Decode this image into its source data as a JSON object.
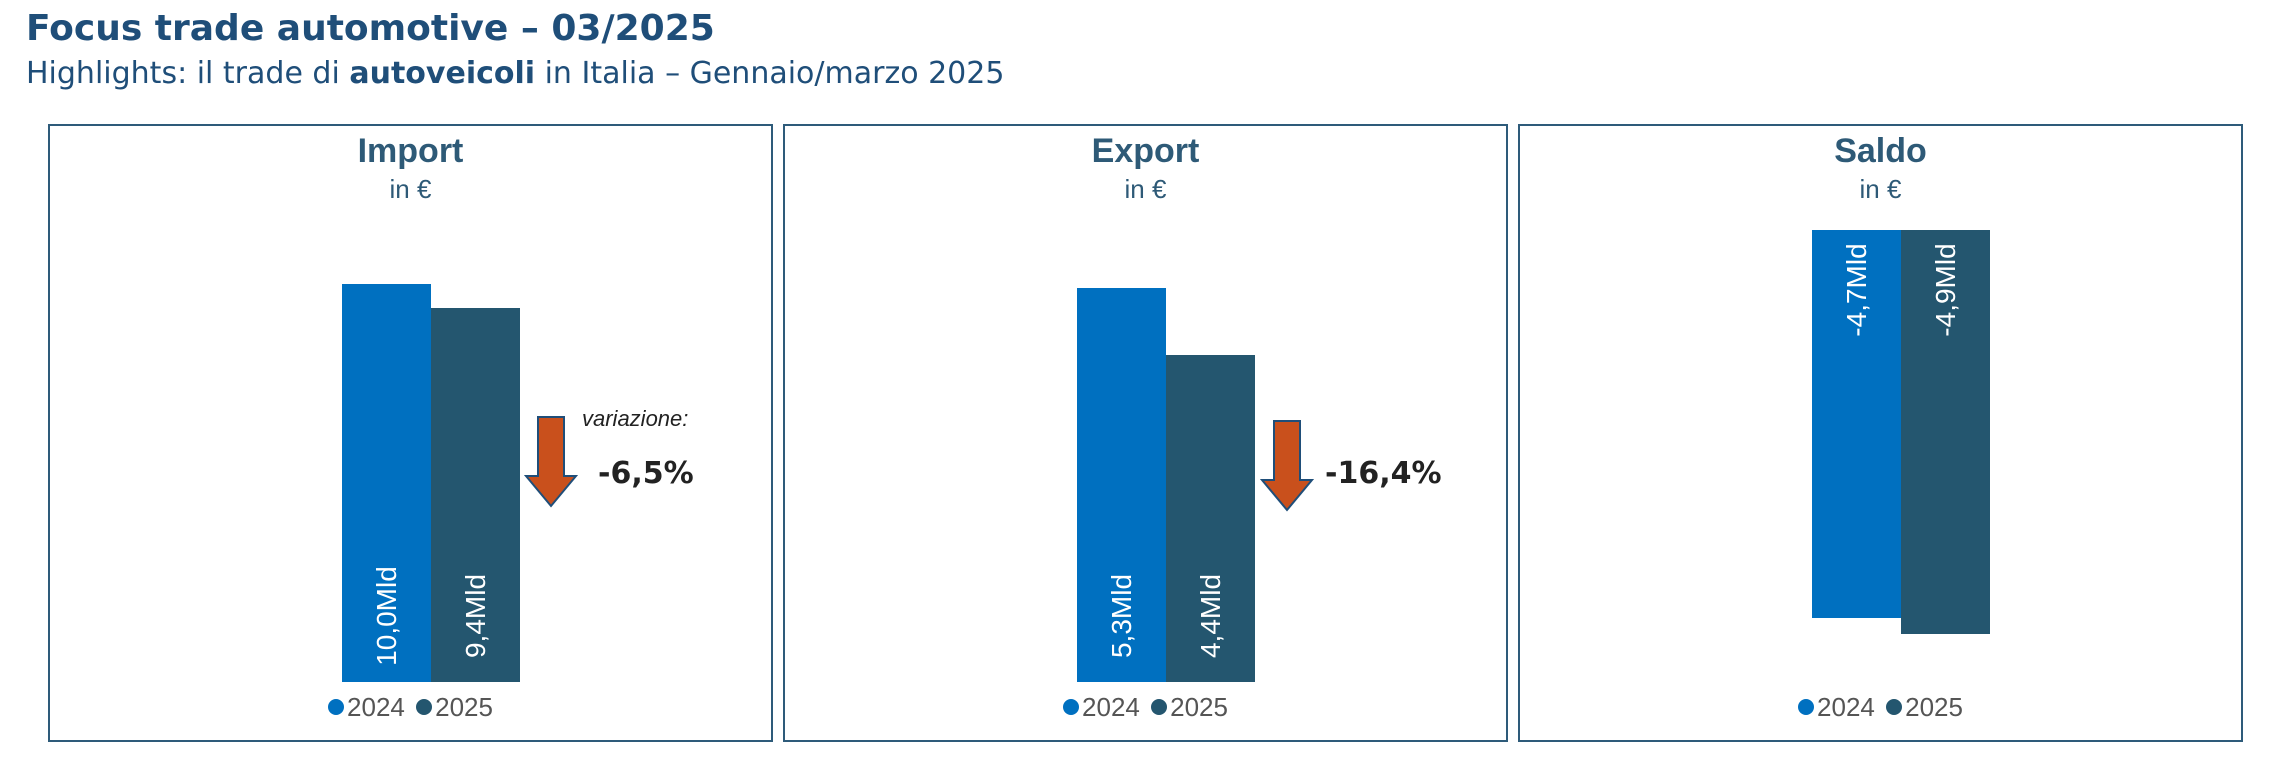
{
  "header": {
    "title": "Focus trade automotive – 03/2025",
    "subtitle_pre": "Highlights: il trade di ",
    "subtitle_bold": "autoveicoli",
    "subtitle_post": " in Italia – Gennaio/marzo 2025"
  },
  "colors": {
    "s2024": "#0070c0",
    "s2025": "#24566f",
    "arrow": "#c9501c",
    "arrow_edge": "#1f4e79",
    "border": "#2e5b7a"
  },
  "chart_data": [
    {
      "type": "bar",
      "title": "Import",
      "subtitle": "in €",
      "categories": [
        "2024",
        "2025"
      ],
      "values": [
        10.0,
        9.4
      ],
      "data_labels": [
        "10,0Mld",
        "9,4Mld"
      ],
      "legend": [
        "2024",
        "2025"
      ],
      "legend_position": "bottom",
      "grid": false,
      "variation_label": "variazione:",
      "variation": "-6,5%"
    },
    {
      "type": "bar",
      "title": "Export",
      "subtitle": "in €",
      "categories": [
        "2024",
        "2025"
      ],
      "values": [
        5.3,
        4.4
      ],
      "data_labels": [
        "5,3Mld",
        "4,4Mld"
      ],
      "legend": [
        "2024",
        "2025"
      ],
      "legend_position": "bottom",
      "grid": false,
      "variation": "-16,4%"
    },
    {
      "type": "bar",
      "title": "Saldo",
      "subtitle": "in €",
      "categories": [
        "2024",
        "2025"
      ],
      "values": [
        -4.7,
        -4.9
      ],
      "data_labels": [
        "-4,7Mld",
        "-4,9Mld"
      ],
      "legend": [
        "2024",
        "2025"
      ],
      "legend_position": "bottom",
      "grid": false
    }
  ]
}
